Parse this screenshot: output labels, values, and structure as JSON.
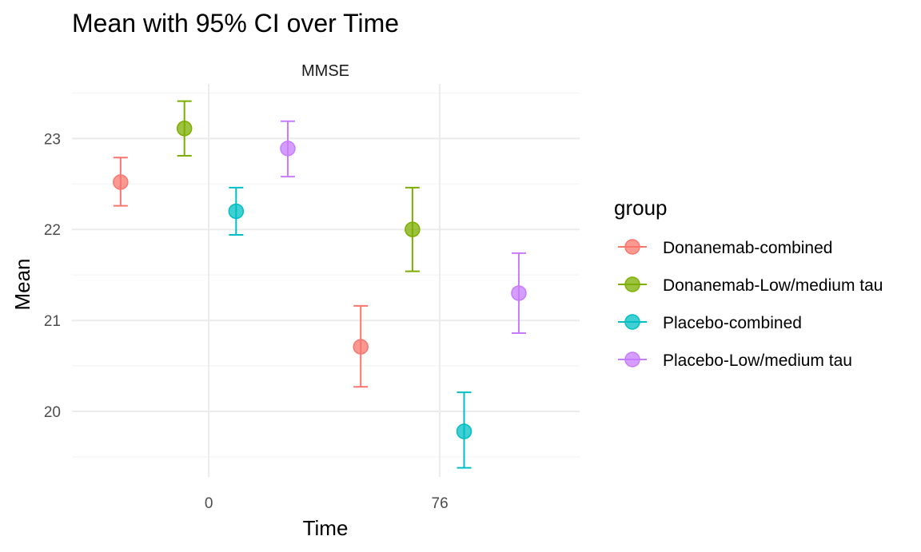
{
  "chart_data": {
    "type": "scatter",
    "title": "Mean with 95% CI over Time",
    "facet": "MMSE",
    "xlabel": "Time",
    "ylabel": "Mean",
    "x_ticks": [
      0,
      76
    ],
    "y_ticks": [
      20,
      21,
      22,
      23
    ],
    "xlim": [
      -45,
      122
    ],
    "ylim": [
      19.28,
      23.6
    ],
    "legend_title": "group",
    "legend_position": "right",
    "grid": true,
    "series": [
      {
        "name": "Donanemab-combined",
        "color": "#F8766D",
        "points": [
          {
            "x": -29,
            "y": 22.52,
            "lo": 22.26,
            "hi": 22.79
          },
          {
            "x": 50,
            "y": 20.71,
            "lo": 20.27,
            "hi": 21.16
          }
        ]
      },
      {
        "name": "Donanemab-Low/medium tau",
        "color": "#7CAE00",
        "points": [
          {
            "x": -8,
            "y": 23.11,
            "lo": 22.81,
            "hi": 23.41
          },
          {
            "x": 67,
            "y": 22.0,
            "lo": 21.54,
            "hi": 22.46
          }
        ]
      },
      {
        "name": "Placebo-combined",
        "color": "#00BFC4",
        "points": [
          {
            "x": 9,
            "y": 22.2,
            "lo": 21.94,
            "hi": 22.46
          },
          {
            "x": 84,
            "y": 19.78,
            "lo": 19.38,
            "hi": 20.21
          }
        ]
      },
      {
        "name": "Placebo-Low/medium tau",
        "color": "#C77CFF",
        "points": [
          {
            "x": 26,
            "y": 22.89,
            "lo": 22.58,
            "hi": 23.19
          },
          {
            "x": 102,
            "y": 21.3,
            "lo": 20.86,
            "hi": 21.74
          }
        ]
      }
    ]
  }
}
